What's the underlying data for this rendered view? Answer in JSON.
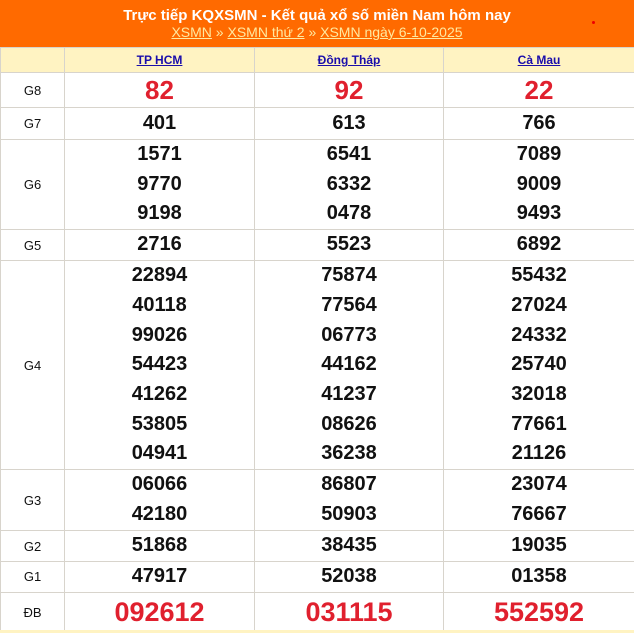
{
  "header": {
    "title": "Trực tiếp KQXSMN - Kết quả xổ số miền Nam hôm nay",
    "breadcrumb": [
      "XSMN",
      "XSMN thứ 2",
      "XSMN ngày 6-10-2025"
    ],
    "separator": "»"
  },
  "colors": {
    "header_bg": "#ff6a00",
    "highlight": "#e0202e",
    "table_header_bg": "#fff3c2",
    "link": "#1a0dab"
  },
  "provinces": [
    "TP HCM",
    "Đồng Tháp",
    "Cà Mau"
  ],
  "prizes": [
    {
      "label": "G8",
      "values": [
        [
          "82"
        ],
        [
          "92"
        ],
        [
          "22"
        ]
      ],
      "style": "r"
    },
    {
      "label": "G7",
      "values": [
        [
          "401"
        ],
        [
          "613"
        ],
        [
          "766"
        ]
      ],
      "style": "n"
    },
    {
      "label": "G6",
      "values": [
        [
          "1571",
          "9770",
          "9198"
        ],
        [
          "6541",
          "6332",
          "0478"
        ],
        [
          "7089",
          "9009",
          "9493"
        ]
      ],
      "style": "n"
    },
    {
      "label": "G5",
      "values": [
        [
          "2716"
        ],
        [
          "5523"
        ],
        [
          "6892"
        ]
      ],
      "style": "n"
    },
    {
      "label": "G4",
      "values": [
        [
          "22894",
          "40118",
          "99026",
          "54423",
          "41262",
          "53805",
          "04941"
        ],
        [
          "75874",
          "77564",
          "06773",
          "44162",
          "41237",
          "08626",
          "36238"
        ],
        [
          "55432",
          "27024",
          "24332",
          "25740",
          "32018",
          "77661",
          "21126"
        ]
      ],
      "style": "n"
    },
    {
      "label": "G3",
      "values": [
        [
          "06066",
          "42180"
        ],
        [
          "86807",
          "50903"
        ],
        [
          "23074",
          "76667"
        ]
      ],
      "style": "n"
    },
    {
      "label": "G2",
      "values": [
        [
          "51868"
        ],
        [
          "38435"
        ],
        [
          "19035"
        ]
      ],
      "style": "n"
    },
    {
      "label": "G1",
      "values": [
        [
          "47917"
        ],
        [
          "52038"
        ],
        [
          "01358"
        ]
      ],
      "style": "n"
    },
    {
      "label": "ĐB",
      "values": [
        [
          "092612"
        ],
        [
          "031115"
        ],
        [
          "552592"
        ]
      ],
      "style": "db"
    }
  ]
}
